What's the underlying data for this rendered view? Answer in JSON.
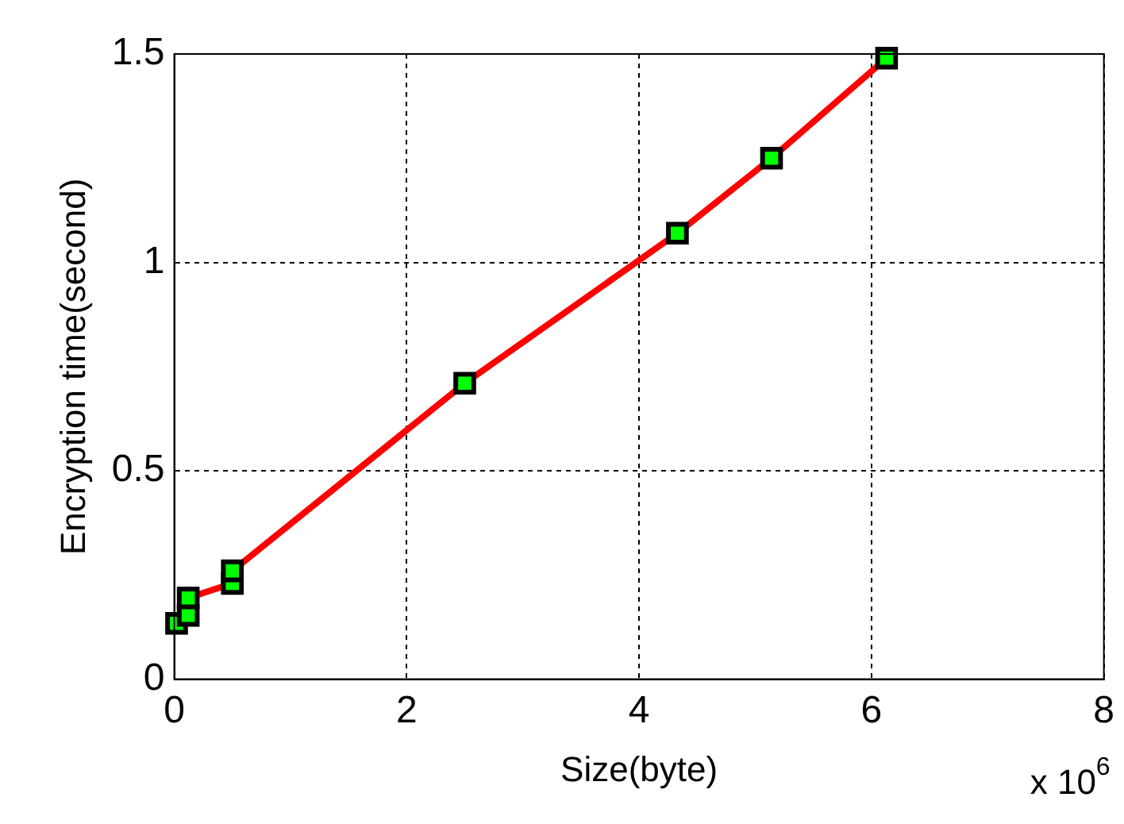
{
  "chart_data": {
    "type": "line",
    "xlabel": "Size(byte)",
    "ylabel": "Encryption time(second)",
    "annotations": [
      "x 10$^{6}$"
    ],
    "x": [
      0.02,
      0.12,
      0.12,
      0.5,
      0.5,
      2.5,
      4.33,
      5.14,
      6.13
    ],
    "series": [
      {
        "color": "#ff0000",
        "colors": [
          "#00ff00",
          "#00ff00",
          "#00ff00",
          "#00ff00",
          "#00ff00",
          "#00ff00",
          "#00ff00",
          "#00ff00",
          "#00ff00"
        ],
        "values": [
          0.134,
          0.153,
          0.195,
          0.23,
          0.26,
          0.71,
          1.07,
          1.25,
          1.49
        ]
      }
    ],
    "xlim": [
      0,
      8
    ],
    "xticks": [
      0,
      2,
      4,
      6,
      8
    ],
    "ylim": [
      0,
      1.5
    ],
    "yticks": [
      0,
      0.5,
      1,
      1.5
    ],
    "grid": true,
    "marker": "square",
    "line_style": "solid",
    "legend": false
  }
}
